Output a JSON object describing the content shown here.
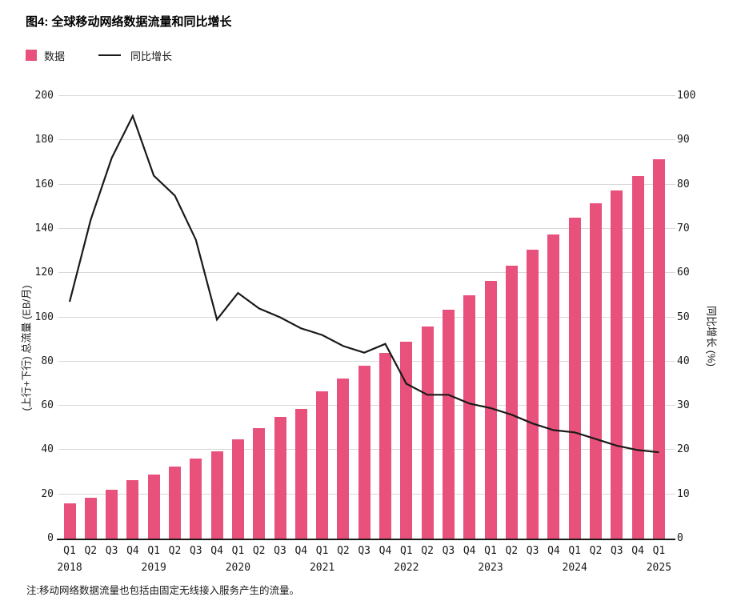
{
  "figure": {
    "title": "图4: 全球移动网络数据流量和同比增长",
    "note": "注:移动网络数据流量也包括由固定无线接入服务产生的流量。"
  },
  "legend": {
    "bar_label": "数据",
    "line_label": "同比增长"
  },
  "colors": {
    "bar": "#E8517B",
    "line": "#1a1a1a",
    "grid": "#d9d9d9",
    "text": "#1a1a1a"
  },
  "chart_data": {
    "type": "bar",
    "title": "图4: 全球移动网络数据流量和同比增长",
    "categories": [
      "Q1 2018",
      "Q2 2018",
      "Q3 2018",
      "Q4 2018",
      "Q1 2019",
      "Q2 2019",
      "Q3 2019",
      "Q4 2019",
      "Q1 2020",
      "Q2 2020",
      "Q3 2020",
      "Q4 2020",
      "Q1 2021",
      "Q2 2021",
      "Q3 2021",
      "Q4 2021",
      "Q1 2022",
      "Q2 2022",
      "Q3 2022",
      "Q4 2022",
      "Q1 2023",
      "Q2 2023",
      "Q3 2023",
      "Q4 2023",
      "Q1 2024",
      "Q2 2024",
      "Q3 2024",
      "Q4 2024",
      "Q1 2025"
    ],
    "quarter_labels": [
      "Q1",
      "Q2",
      "Q3",
      "Q4",
      "Q1",
      "Q2",
      "Q3",
      "Q4",
      "Q1",
      "Q2",
      "Q3",
      "Q4",
      "Q1",
      "Q2",
      "Q3",
      "Q4",
      "Q1",
      "Q2",
      "Q3",
      "Q4",
      "Q1",
      "Q2",
      "Q3",
      "Q4",
      "Q1",
      "Q2",
      "Q3",
      "Q4",
      "Q1"
    ],
    "year_labels": [
      {
        "label": "2018",
        "quarter_index": 0
      },
      {
        "label": "2019",
        "quarter_index": 4
      },
      {
        "label": "2020",
        "quarter_index": 8
      },
      {
        "label": "2021",
        "quarter_index": 12
      },
      {
        "label": "2022",
        "quarter_index": 16
      },
      {
        "label": "2023",
        "quarter_index": 20
      },
      {
        "label": "2024",
        "quarter_index": 24
      },
      {
        "label": "2025",
        "quarter_index": 28
      }
    ],
    "series": [
      {
        "name": "数据",
        "type": "bar",
        "axis": "left",
        "color": "#E8517B",
        "values": [
          16,
          18.5,
          22,
          26.5,
          29,
          32.5,
          36,
          39.5,
          45,
          50,
          55,
          58.5,
          66.5,
          72.5,
          78,
          84,
          89,
          96,
          103.5,
          110,
          116.5,
          123.5,
          130.5,
          137.5,
          145,
          151.5,
          157.5,
          164,
          171.5
        ]
      },
      {
        "name": "同比增长",
        "type": "line",
        "axis": "right",
        "color": "#1a1a1a",
        "values": [
          53.5,
          72,
          86,
          95.5,
          82,
          77.5,
          67.5,
          49.5,
          55.5,
          52,
          50,
          47.5,
          46,
          43.5,
          42,
          44,
          35,
          32.5,
          32.5,
          30.5,
          29.5,
          28,
          26,
          24.5,
          24,
          22.5,
          21,
          20,
          19.5
        ]
      }
    ],
    "left_axis": {
      "label": "(上行+下行) 总流量 (EB/月)",
      "min": 0,
      "max": 200,
      "ticks": [
        0,
        20,
        40,
        60,
        80,
        100,
        120,
        140,
        160,
        180,
        200
      ]
    },
    "right_axis": {
      "label": "同比增长 (%)",
      "min": 0,
      "max": 100,
      "ticks": [
        0,
        10,
        20,
        30,
        40,
        50,
        60,
        70,
        80,
        90,
        100
      ]
    },
    "grid": true,
    "legend_position": "top-left"
  }
}
